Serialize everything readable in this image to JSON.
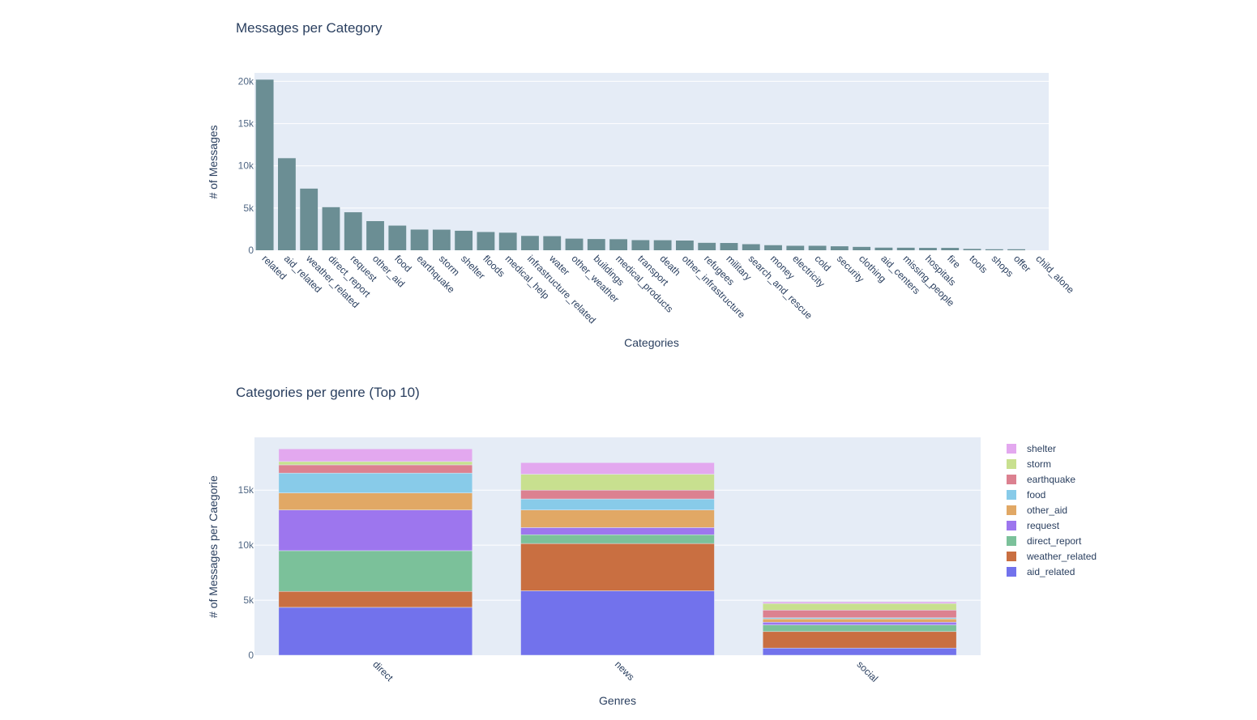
{
  "chart_data": [
    {
      "type": "bar",
      "title": "Messages per Category",
      "xlabel": "Categories",
      "ylabel": "# of Messages",
      "ylim": [
        0,
        21000
      ],
      "yticks": [
        0,
        5000,
        10000,
        15000,
        20000
      ],
      "ytick_labels": [
        "0",
        "5k",
        "10k",
        "15k",
        "20k"
      ],
      "bar_color": "#6b8e94",
      "categories": [
        "related",
        "aid_related",
        "weather_related",
        "direct_report",
        "request",
        "other_aid",
        "food",
        "earthquake",
        "storm",
        "shelter",
        "floods",
        "medical_help",
        "infrastructure_related",
        "water",
        "other_weather",
        "buildings",
        "medical_products",
        "transport",
        "death",
        "other_infrastructure",
        "refugees",
        "military",
        "search_and_rescue",
        "money",
        "electricity",
        "cold",
        "security",
        "clothing",
        "aid_centers",
        "missing_people",
        "hospitals",
        "fire",
        "tools",
        "shops",
        "offer",
        "child_alone"
      ],
      "values": [
        20200,
        10900,
        7300,
        5100,
        4500,
        3450,
        2920,
        2450,
        2440,
        2310,
        2160,
        2080,
        1700,
        1670,
        1380,
        1330,
        1310,
        1200,
        1190,
        1150,
        880,
        860,
        720,
        600,
        530,
        530,
        470,
        400,
        310,
        300,
        280,
        280,
        160,
        120,
        120,
        0
      ]
    },
    {
      "type": "bar",
      "stacked": true,
      "title": "Categories per genre (Top 10)",
      "xlabel": "Genres",
      "ylabel": "# of Messages per Caegorie",
      "ylim": [
        0,
        19800
      ],
      "yticks": [
        0,
        5000,
        10000,
        15000
      ],
      "ytick_labels": [
        "0",
        "5k",
        "10k",
        "15k"
      ],
      "categories": [
        "direct",
        "news",
        "social"
      ],
      "series": [
        {
          "name": "aid_related",
          "color": "#7272ec",
          "values": [
            4350,
            5850,
            650
          ]
        },
        {
          "name": "weather_related",
          "color": "#c96f41",
          "values": [
            1450,
            4300,
            1500
          ]
        },
        {
          "name": "direct_report",
          "color": "#7bc19a",
          "values": [
            3700,
            800,
            600
          ]
        },
        {
          "name": "request",
          "color": "#9d76ee",
          "values": [
            3700,
            650,
            250
          ]
        },
        {
          "name": "other_aid",
          "color": "#e1a865",
          "values": [
            1550,
            1600,
            300
          ]
        },
        {
          "name": "food",
          "color": "#88cbe9",
          "values": [
            1800,
            1000,
            100
          ]
        },
        {
          "name": "earthquake",
          "color": "#dc8190",
          "values": [
            750,
            800,
            700
          ]
        },
        {
          "name": "storm",
          "color": "#c8e08f",
          "values": [
            300,
            1450,
            600
          ]
        },
        {
          "name": "shelter",
          "color": "#e3a8ef",
          "values": [
            1150,
            1050,
            150
          ]
        }
      ],
      "legend_order": [
        "shelter",
        "storm",
        "earthquake",
        "food",
        "other_aid",
        "request",
        "direct_report",
        "weather_related",
        "aid_related"
      ],
      "legend_position": "right"
    }
  ]
}
